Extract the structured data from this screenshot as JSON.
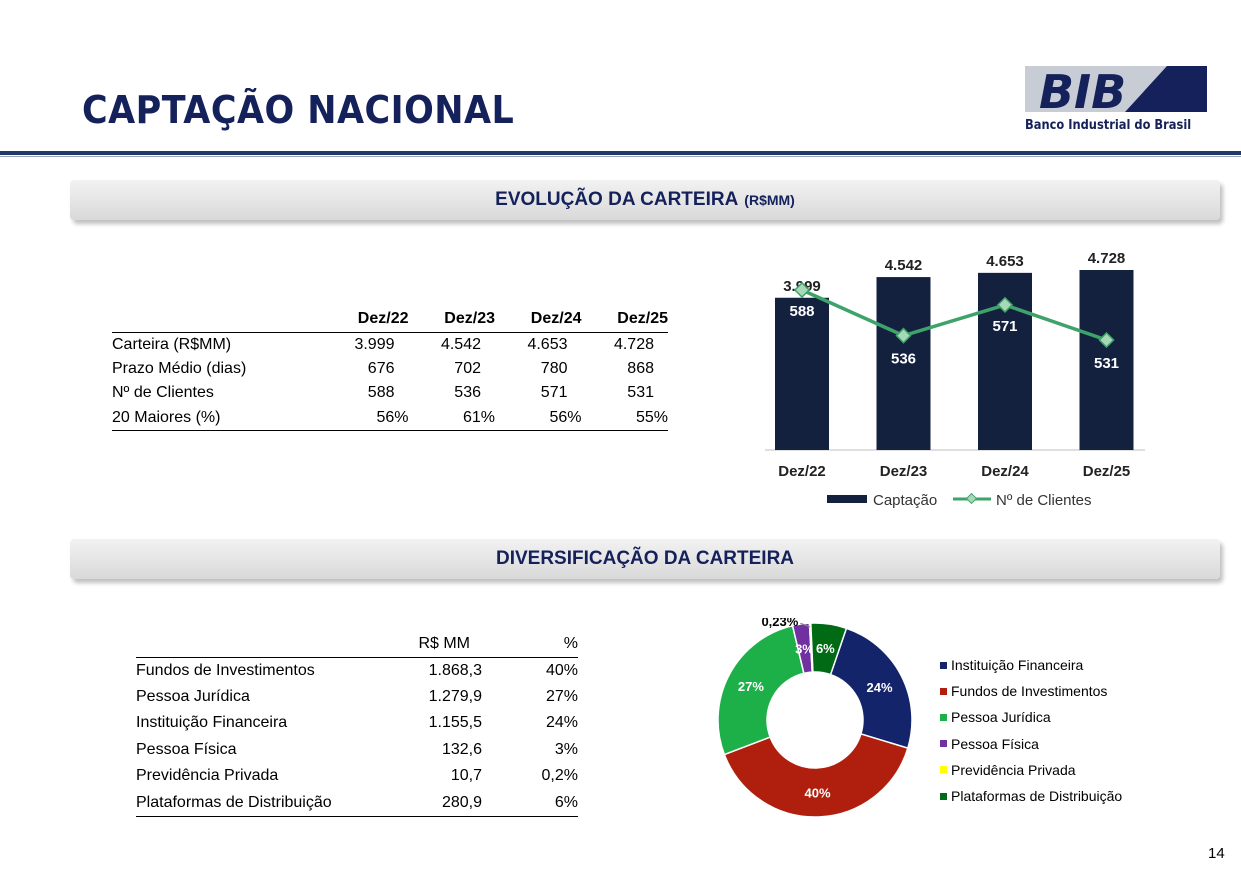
{
  "header": {
    "title": "CAPTAÇÃO NACIONAL",
    "logo_text": "BIB",
    "logo_subtitle": "Banco Industrial do Brasil"
  },
  "sections": {
    "evolucao": {
      "title": "EVOLUÇÃO DA CARTEIRA",
      "unit": "(R$MM)"
    },
    "diversificacao": {
      "title": "DIVERSIFICAÇÃO DA CARTEIRA"
    }
  },
  "table_evolucao": {
    "columns": [
      "",
      "Dez/22",
      "Dez/23",
      "Dez/24",
      "Dez/25"
    ],
    "rows": [
      [
        "Carteira (R$MM)",
        "3.999",
        "4.542",
        "4.653",
        "4.728"
      ],
      [
        "Prazo Médio (dias)",
        "676",
        "702",
        "780",
        "868"
      ],
      [
        "Nº de Clientes",
        "588",
        "536",
        "571",
        "531"
      ],
      [
        "20 Maiores (%)",
        "56%",
        "61%",
        "56%",
        "55%"
      ]
    ]
  },
  "table_diversificacao": {
    "columns": [
      "",
      "R$ MM",
      "%"
    ],
    "rows": [
      [
        "Fundos de Investimentos",
        "1.868,3",
        "40%"
      ],
      [
        "Pessoa Jurídica",
        "1.279,9",
        "27%"
      ],
      [
        "Instituição Financeira",
        "1.155,5",
        "24%"
      ],
      [
        "Pessoa Física",
        "132,6",
        "3%"
      ],
      [
        "Previdência Privada",
        "10,7",
        "0,2%"
      ],
      [
        "Plataformas de Distribuição",
        "280,9",
        "6%"
      ]
    ]
  },
  "chart_data": [
    {
      "type": "bar",
      "categories": [
        "Dez/22",
        "Dez/23",
        "Dez/24",
        "Dez/25"
      ],
      "series": [
        {
          "name": "Captação",
          "values": [
            3999,
            4542,
            4653,
            4728
          ],
          "labels": [
            "3.999",
            "4.542",
            "4.653",
            "4.728"
          ],
          "color": "#13213f"
        },
        {
          "name": "Nº de Clientes",
          "type": "line",
          "values": [
            588,
            536,
            571,
            531
          ],
          "labels": [
            "588",
            "536",
            "571",
            "531"
          ],
          "color": "#3ea36a"
        }
      ],
      "legend": "bottom"
    },
    {
      "type": "pie",
      "categories": [
        "Instituição Financeira",
        "Fundos de Investimentos",
        "Pessoa Jurídica",
        "Pessoa Física",
        "Previdência Privada",
        "Plataformas de Distribuição"
      ],
      "values": [
        1155.5,
        1868.3,
        1279.9,
        132.6,
        10.7,
        280.9
      ],
      "labels": [
        "24%",
        "40%",
        "27%",
        "3%",
        "0,23%",
        "6%"
      ],
      "colors": [
        "#13246a",
        "#b01e0e",
        "#1db049",
        "#7030a0",
        "#ffff00",
        "#006b14"
      ],
      "legend": "right"
    }
  ],
  "footer": {
    "page_number": "14"
  }
}
